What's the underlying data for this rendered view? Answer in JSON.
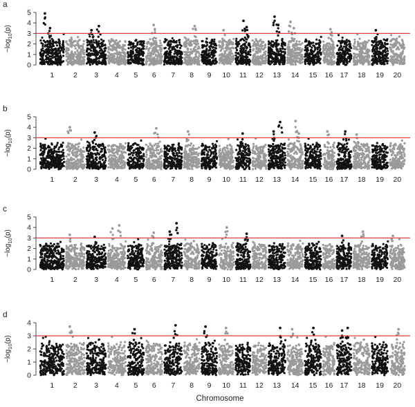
{
  "figure": {
    "xlabel": "Chromosome"
  },
  "colors": {
    "odd_chromosome": "#111111",
    "even_chromosome": "#9a9a9a",
    "threshold_line": "#e53935"
  },
  "chart_data": [
    {
      "panel": "a",
      "type": "scatter",
      "ylabel": "−log10(p)",
      "ylim": [
        0,
        5
      ],
      "yticks": [
        0,
        1,
        2,
        3,
        4,
        5
      ],
      "threshold": 3,
      "chromosomes": [
        "1",
        "2",
        "3",
        "4",
        "5",
        "6",
        "7",
        "8",
        "9",
        "10",
        "11",
        "12",
        "13",
        "14",
        "15",
        "16",
        "17",
        "18",
        "19",
        "20"
      ],
      "peaks": [
        {
          "chromosome": "1",
          "value": 4.9
        },
        {
          "chromosome": "1",
          "value": 3.5
        },
        {
          "chromosome": "3",
          "value": 3.7
        },
        {
          "chromosome": "3",
          "value": 3.3
        },
        {
          "chromosome": "6",
          "value": 3.8
        },
        {
          "chromosome": "8",
          "value": 3.7
        },
        {
          "chromosome": "10",
          "value": 3.3
        },
        {
          "chromosome": "11",
          "value": 4.2
        },
        {
          "chromosome": "11",
          "value": 3.6
        },
        {
          "chromosome": "13",
          "value": 4.6
        },
        {
          "chromosome": "13",
          "value": 3.8
        },
        {
          "chromosome": "14",
          "value": 4.1
        },
        {
          "chromosome": "14",
          "value": 3.5
        },
        {
          "chromosome": "16",
          "value": 3.4
        },
        {
          "chromosome": "19",
          "value": 3.3
        }
      ]
    },
    {
      "panel": "b",
      "type": "scatter",
      "ylabel": "−log10(p)",
      "ylim": [
        0,
        5
      ],
      "yticks": [
        0,
        1,
        2,
        3,
        4,
        5
      ],
      "threshold": 3,
      "chromosomes": [
        "1",
        "2",
        "3",
        "4",
        "5",
        "6",
        "7",
        "8",
        "9",
        "10",
        "11",
        "12",
        "13",
        "14",
        "15",
        "16",
        "17",
        "18",
        "19",
        "20"
      ],
      "peaks": [
        {
          "chromosome": "2",
          "value": 4.0
        },
        {
          "chromosome": "3",
          "value": 3.5
        },
        {
          "chromosome": "6",
          "value": 3.9
        },
        {
          "chromosome": "8",
          "value": 3.6
        },
        {
          "chromosome": "11",
          "value": 3.4
        },
        {
          "chromosome": "13",
          "value": 4.5
        },
        {
          "chromosome": "13",
          "value": 3.6
        },
        {
          "chromosome": "14",
          "value": 4.6
        },
        {
          "chromosome": "14",
          "value": 3.4
        },
        {
          "chromosome": "16",
          "value": 3.6
        },
        {
          "chromosome": "17",
          "value": 3.6
        },
        {
          "chromosome": "18",
          "value": 3.3
        }
      ]
    },
    {
      "panel": "c",
      "type": "scatter",
      "ylabel": "−log10(p)",
      "ylim": [
        0,
        5
      ],
      "yticks": [
        0,
        1,
        2,
        3,
        4,
        5
      ],
      "threshold": 3,
      "chromosomes": [
        "1",
        "2",
        "3",
        "4",
        "5",
        "6",
        "7",
        "8",
        "9",
        "10",
        "11",
        "12",
        "13",
        "14",
        "15",
        "16",
        "17",
        "18",
        "19",
        "20"
      ],
      "peaks": [
        {
          "chromosome": "2",
          "value": 3.3
        },
        {
          "chromosome": "3",
          "value": 3.1
        },
        {
          "chromosome": "4",
          "value": 4.2
        },
        {
          "chromosome": "4",
          "value": 3.9
        },
        {
          "chromosome": "6",
          "value": 3.5
        },
        {
          "chromosome": "7",
          "value": 4.4
        },
        {
          "chromosome": "7",
          "value": 3.6
        },
        {
          "chromosome": "10",
          "value": 4.0
        },
        {
          "chromosome": "11",
          "value": 3.4
        },
        {
          "chromosome": "17",
          "value": 3.2
        },
        {
          "chromosome": "18",
          "value": 3.6
        },
        {
          "chromosome": "20",
          "value": 3.2
        }
      ]
    },
    {
      "panel": "d",
      "type": "scatter",
      "ylabel": "−log10(p)",
      "ylim": [
        0,
        4
      ],
      "yticks": [
        0,
        1,
        2,
        3,
        4
      ],
      "threshold": 3,
      "chromosomes": [
        "1",
        "2",
        "3",
        "4",
        "5",
        "6",
        "7",
        "8",
        "9",
        "10",
        "11",
        "12",
        "13",
        "14",
        "15",
        "16",
        "17",
        "18",
        "19",
        "20"
      ],
      "peaks": [
        {
          "chromosome": "2",
          "value": 3.7
        },
        {
          "chromosome": "5",
          "value": 3.5
        },
        {
          "chromosome": "7",
          "value": 3.8
        },
        {
          "chromosome": "9",
          "value": 3.7
        },
        {
          "chromosome": "10",
          "value": 3.6
        },
        {
          "chromosome": "13",
          "value": 3.6
        },
        {
          "chromosome": "14",
          "value": 3.5
        },
        {
          "chromosome": "15",
          "value": 3.6
        },
        {
          "chromosome": "17",
          "value": 3.6
        },
        {
          "chromosome": "17",
          "value": 3.4
        },
        {
          "chromosome": "20",
          "value": 3.5
        }
      ]
    }
  ]
}
